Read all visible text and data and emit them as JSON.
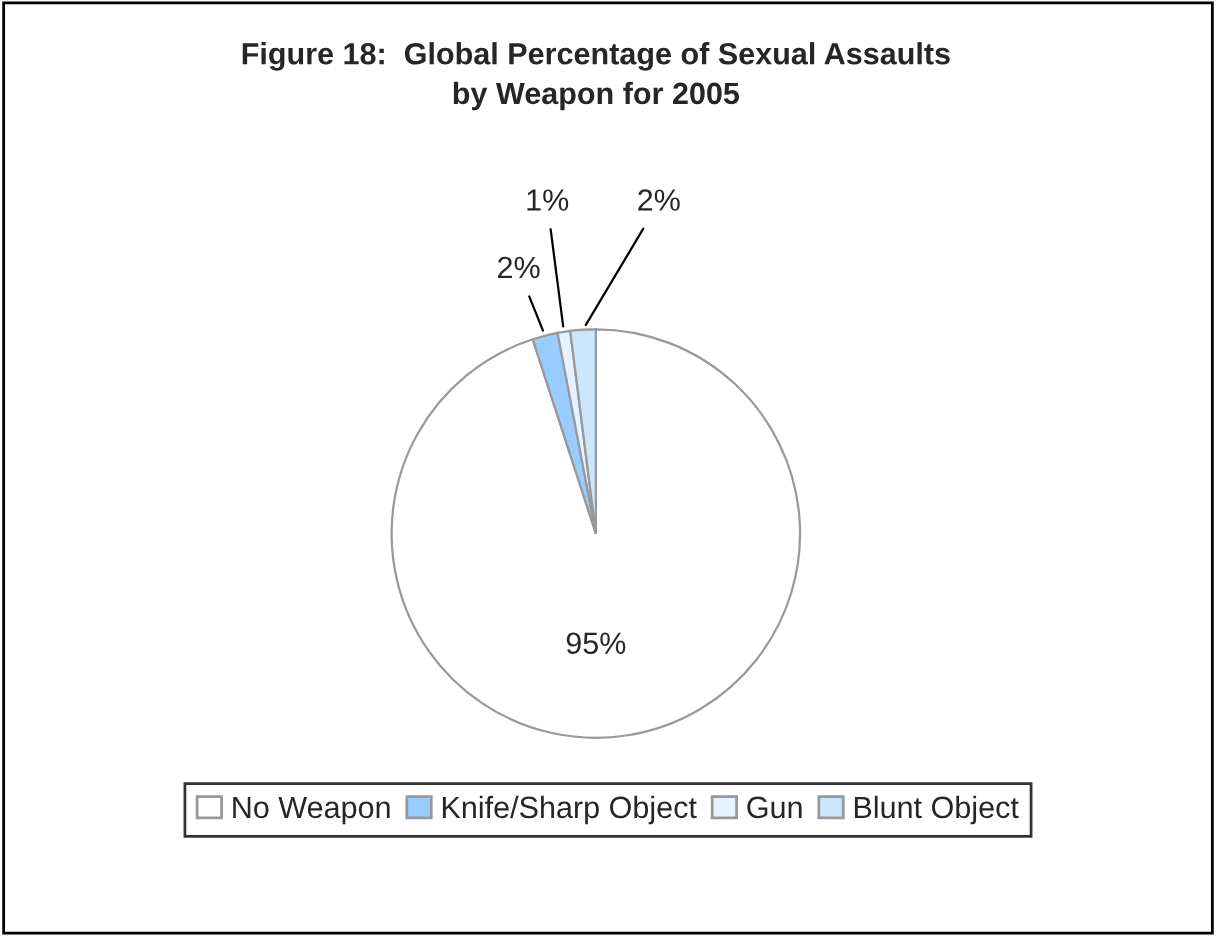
{
  "chart_data": {
    "type": "pie",
    "title": "Figure 18:  Global Percentage of Sexual Assaults by Weapon for 2005",
    "categories": [
      "No Weapon",
      "Knife/Sharp Object",
      "Gun",
      "Blunt Object"
    ],
    "values": [
      95,
      2,
      1,
      2
    ],
    "colors": [
      "#ffffff",
      "#99ccff",
      "#e6f2ff",
      "#cce6ff"
    ],
    "value_labels": [
      "95%",
      "2%",
      "1%",
      "2%"
    ],
    "legend": "bottom"
  }
}
